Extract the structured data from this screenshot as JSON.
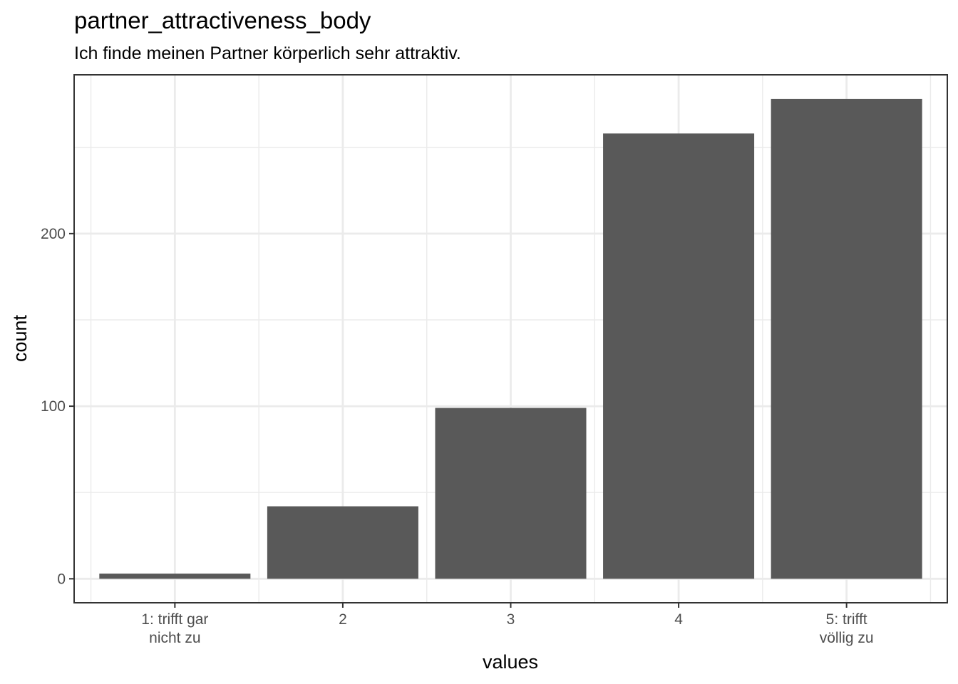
{
  "chart_data": {
    "type": "bar",
    "title": "partner_attractiveness_body",
    "subtitle": "Ich finde meinen Partner körperlich sehr attraktiv.",
    "xlabel": "values",
    "ylabel": "count",
    "categories": [
      [
        "1: trifft gar",
        "nicht zu"
      ],
      [
        "2"
      ],
      [
        "3"
      ],
      [
        "4"
      ],
      [
        "5: trifft",
        "völlig zu"
      ]
    ],
    "values": [
      3,
      42,
      99,
      258,
      278
    ],
    "ylim": [
      -13.9,
      292
    ],
    "yticks": [
      0,
      100,
      200
    ],
    "y_minor_ticks": [
      50,
      150,
      250
    ],
    "grid": true,
    "bar_color": "#595959",
    "grid_color": "#ebebeb",
    "panel_border_color": "#333333"
  }
}
